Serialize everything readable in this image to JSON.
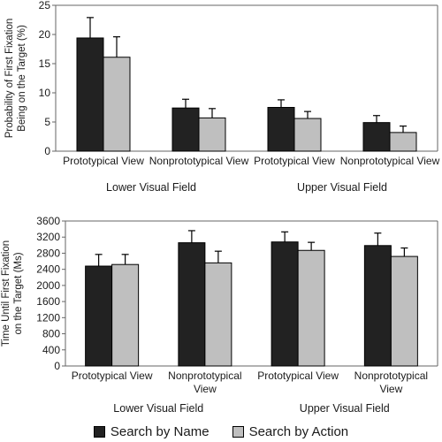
{
  "chart_data": [
    {
      "type": "bar",
      "ylabel": "Probability of First Fixation Being on the Target (%)",
      "ylim": [
        0,
        25
      ],
      "yticks": [
        0,
        5,
        10,
        15,
        20,
        25
      ],
      "categories": [
        "Prototypical View",
        "Nonprototypical View",
        "Prototypical View",
        "Nonprototypical View"
      ],
      "groups": [
        "Lower Visual Field",
        "Upper Visual Field"
      ],
      "grid": false,
      "series": [
        {
          "name": "Search by Name",
          "color": "#222222",
          "values": [
            19.4,
            7.4,
            7.5,
            4.9
          ],
          "errors": [
            3.5,
            1.5,
            1.3,
            1.2
          ]
        },
        {
          "name": "Search by Action",
          "color": "#bfbfbf",
          "values": [
            16.1,
            5.7,
            5.6,
            3.2
          ],
          "errors": [
            3.5,
            1.6,
            1.2,
            1.1
          ]
        }
      ]
    },
    {
      "type": "bar",
      "ylabel": "Time Until First Fixation on the Target (Ms)",
      "ylim": [
        0,
        3600
      ],
      "yticks": [
        0,
        400,
        800,
        1200,
        1600,
        2000,
        2400,
        2800,
        3200,
        3600
      ],
      "categories": [
        "Prototypical View",
        "Nonprototypical View",
        "Prototypical View",
        "Nonprototypical View"
      ],
      "groups": [
        "Lower Visual Field",
        "Upper Visual Field"
      ],
      "grid": false,
      "series": [
        {
          "name": "Search by Name",
          "color": "#222222",
          "values": [
            2480,
            3060,
            3080,
            2990
          ],
          "errors": [
            290,
            300,
            250,
            310
          ]
        },
        {
          "name": "Search by Action",
          "color": "#bfbfbf",
          "values": [
            2520,
            2560,
            2870,
            2720
          ],
          "errors": [
            250,
            290,
            200,
            210
          ]
        }
      ]
    }
  ],
  "legend": {
    "position": "bottom",
    "items": [
      {
        "label": "Search by Name",
        "color": "#222222"
      },
      {
        "label": "Search by Action",
        "color": "#bfbfbf"
      }
    ]
  }
}
